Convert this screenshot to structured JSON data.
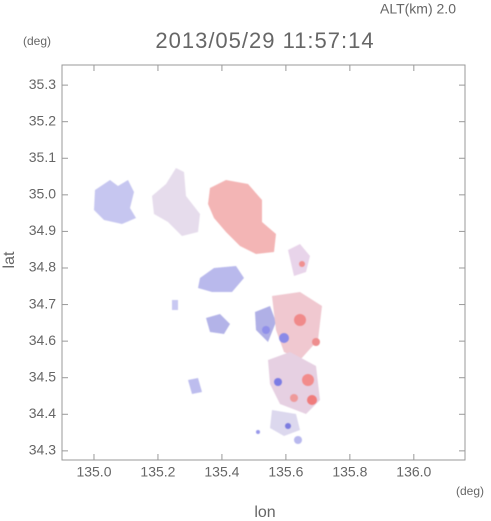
{
  "chart_data": {
    "type": "map",
    "title": "2013/05/29 11:57:14",
    "subtitle": "ALT(km) 2.0",
    "x_label": "lon",
    "y_label": "lat",
    "x_unit": "(deg)",
    "y_unit": "(deg)",
    "xlim": [
      134.9,
      136.16
    ],
    "ylim": [
      34.275,
      35.355
    ],
    "xticks": [
      {
        "value": 135,
        "label": "135.0"
      },
      135.2,
      135.4,
      135.6,
      135.8,
      {
        "value": 136,
        "label": "136.0"
      }
    ],
    "yticks": [
      34.3,
      34.4,
      34.5,
      34.6,
      34.7,
      34.8,
      34.9,
      {
        "value": 35,
        "label": "35.0"
      },
      35.1,
      35.2,
      35.3
    ]
  }
}
